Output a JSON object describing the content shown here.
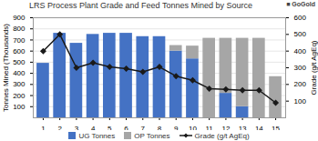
{
  "chart_data": {
    "type": "bar",
    "title": "LRS Process Plant Grade and Feed Tonnes Mined by Source",
    "ylabel": "Tonnes Mined (Thousands)",
    "y2label": "Grade (g/t AgEq)",
    "categories": [
      1,
      2,
      3,
      4,
      5,
      6,
      7,
      8,
      9,
      10,
      11,
      12,
      13,
      14,
      15
    ],
    "series": [
      {
        "name": "UG Tonnes",
        "color": "#4472C4",
        "values": [
          490,
          760,
          670,
          750,
          760,
          760,
          730,
          730,
          600,
          530,
          0,
          220,
          100,
          0,
          0
        ]
      },
      {
        "name": "OP Tonnes",
        "color": "#A6A6A6",
        "values": [
          0,
          0,
          0,
          0,
          0,
          0,
          0,
          0,
          50,
          115,
          715,
          495,
          615,
          715,
          370
        ]
      },
      {
        "name": "Grade (g/t AgEq)",
        "type": "line",
        "axis": "y2",
        "color": "#1A1A1A",
        "marker": "diamond",
        "values": [
          400,
          500,
          300,
          330,
          305,
          295,
          275,
          305,
          250,
          225,
          175,
          170,
          165,
          165,
          90
        ]
      }
    ],
    "stacked": true,
    "ylim": [
      0,
      900
    ],
    "yticks": [
      100,
      200,
      300,
      400,
      500,
      600,
      700,
      800,
      900
    ],
    "y2lim": [
      0,
      600
    ],
    "y2ticks": [
      100,
      200,
      300,
      400,
      500,
      600
    ],
    "grid": true,
    "legend": "bottom",
    "annotations": [
      "■ GoGold"
    ]
  }
}
